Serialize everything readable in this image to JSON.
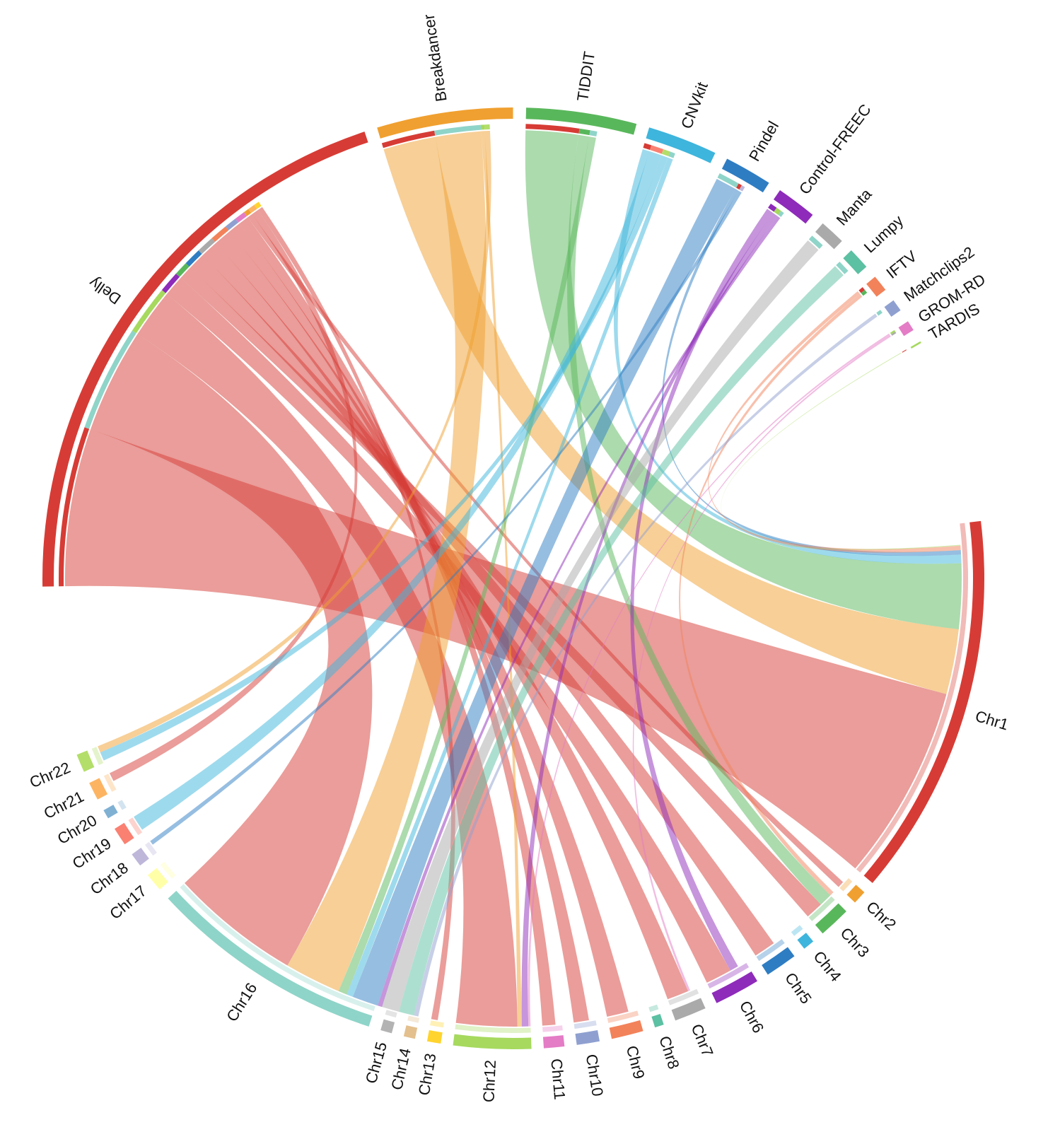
{
  "chart_data": {
    "type": "chord",
    "title": "",
    "tools": [
      {
        "name": "Delly",
        "color": "#D63C35",
        "total": 1600
      },
      {
        "name": "Breakdancer",
        "color": "#F0A030",
        "total": 370
      },
      {
        "name": "TIDDIT",
        "color": "#59B75B",
        "total": 300
      },
      {
        "name": "CNVkit",
        "color": "#3EB5DC",
        "total": 190
      },
      {
        "name": "Pindel",
        "color": "#2E7DC3",
        "total": 130
      },
      {
        "name": "Control-FREEC",
        "color": "#8E2BBA",
        "total": 110
      },
      {
        "name": "Manta",
        "color": "#AAAAAA",
        "total": 70
      },
      {
        "name": "Lumpy",
        "color": "#5CC0A2",
        "total": 60
      },
      {
        "name": "IFTV",
        "color": "#F2825A",
        "total": 45
      },
      {
        "name": "Matchclips2",
        "color": "#8FA0D0",
        "total": 33
      },
      {
        "name": "GROM-RD",
        "color": "#E47CC6",
        "total": 28
      },
      {
        "name": "TARDIS",
        "color": "#A6D95E",
        "total": 5
      }
    ],
    "chromosomes": [
      {
        "name": "Chr1",
        "color": "#D63C35",
        "total": 840
      },
      {
        "name": "Chr2",
        "color": "#F0A030",
        "total": 30
      },
      {
        "name": "Chr3",
        "color": "#59B75B",
        "total": 70
      },
      {
        "name": "Chr4",
        "color": "#3EB5DC",
        "total": 25
      },
      {
        "name": "Chr5",
        "color": "#2E7DC3",
        "total": 70
      },
      {
        "name": "Chr6",
        "color": "#8E2BBA",
        "total": 100
      },
      {
        "name": "Chr7",
        "color": "#AAAAAA",
        "total": 70
      },
      {
        "name": "Chr8",
        "color": "#5CC0A2",
        "total": 20
      },
      {
        "name": "Chr9",
        "color": "#F2825A",
        "total": 70
      },
      {
        "name": "Chr10",
        "color": "#8FA0D0",
        "total": 50
      },
      {
        "name": "Chr11",
        "color": "#E47CC6",
        "total": 45
      },
      {
        "name": "Chr12",
        "color": "#A6D95E",
        "total": 170
      },
      {
        "name": "Chr13",
        "color": "#FFD42E",
        "total": 30
      },
      {
        "name": "Chr14",
        "color": "#E3C08E",
        "total": 25
      },
      {
        "name": "Chr15",
        "color": "#B3B3B3",
        "total": 25
      },
      {
        "name": "Chr16",
        "color": "#8FD4C8",
        "total": 520
      },
      {
        "name": "Chr17",
        "color": "#FFFFA8",
        "total": 40
      },
      {
        "name": "Chr18",
        "color": "#BEB7DA",
        "total": 30
      },
      {
        "name": "Chr19",
        "color": "#FA8072",
        "total": 40
      },
      {
        "name": "Chr20",
        "color": "#80B1D3",
        "total": 20
      },
      {
        "name": "Chr21",
        "color": "#FDB462",
        "total": 40
      },
      {
        "name": "Chr22",
        "color": "#B3DE69",
        "total": 40
      }
    ],
    "links": [
      {
        "tool": "Delly",
        "chromosome": "Chr1",
        "value": 450
      },
      {
        "tool": "Delly",
        "chromosome": "Chr16",
        "value": 300
      },
      {
        "tool": "Delly",
        "chromosome": "Chr12",
        "value": 140
      },
      {
        "tool": "Delly",
        "chromosome": "Chr6",
        "value": 60
      },
      {
        "tool": "Delly",
        "chromosome": "Chr3",
        "value": 40
      },
      {
        "tool": "Delly",
        "chromosome": "Chr5",
        "value": 50
      },
      {
        "tool": "Delly",
        "chromosome": "Chr7",
        "value": 50
      },
      {
        "tool": "Delly",
        "chromosome": "Chr9",
        "value": 50
      },
      {
        "tool": "Delly",
        "chromosome": "Chr10",
        "value": 35
      },
      {
        "tool": "Delly",
        "chromosome": "Chr11",
        "value": 30
      },
      {
        "tool": "Delly",
        "chromosome": "Chr2",
        "value": 15
      },
      {
        "tool": "Delly",
        "chromosome": "Chr21",
        "value": 20
      },
      {
        "tool": "Delly",
        "chromosome": "Chr13",
        "value": 15
      },
      {
        "tool": "Breakdancer",
        "chromosome": "Chr1",
        "value": 150
      },
      {
        "tool": "Breakdancer",
        "chromosome": "Chr16",
        "value": 130
      },
      {
        "tool": "Breakdancer",
        "chromosome": "Chr12",
        "value": 10
      },
      {
        "tool": "Breakdancer",
        "chromosome": "Chr22",
        "value": 15
      },
      {
        "tool": "TIDDIT",
        "chromosome": "Chr1",
        "value": 150
      },
      {
        "tool": "TIDDIT",
        "chromosome": "Chr3",
        "value": 30
      },
      {
        "tool": "TIDDIT",
        "chromosome": "Chr16",
        "value": 20
      },
      {
        "tool": "CNVkit",
        "chromosome": "Chr1",
        "value": 20
      },
      {
        "tool": "CNVkit",
        "chromosome": "Chr19",
        "value": 35
      },
      {
        "tool": "CNVkit",
        "chromosome": "Chr22",
        "value": 20
      },
      {
        "tool": "CNVkit",
        "chromosome": "Chr16",
        "value": 15
      },
      {
        "tool": "Pindel",
        "chromosome": "Chr16",
        "value": 60
      },
      {
        "tool": "Pindel",
        "chromosome": "Chr1",
        "value": 10
      },
      {
        "tool": "Pindel",
        "chromosome": "Chr18",
        "value": 10
      },
      {
        "tool": "Control-FREEC",
        "chromosome": "Chr6",
        "value": 20
      },
      {
        "tool": "Control-FREEC",
        "chromosome": "Chr12",
        "value": 15
      },
      {
        "tool": "Control-FREEC",
        "chromosome": "Chr16",
        "value": 10
      },
      {
        "tool": "Manta",
        "chromosome": "Chr16",
        "value": 40
      },
      {
        "tool": "Lumpy",
        "chromosome": "Chr16",
        "value": 35
      },
      {
        "tool": "IFTV",
        "chromosome": "Chr1",
        "value": 10
      },
      {
        "tool": "IFTV",
        "chromosome": "Chr3",
        "value": 10
      },
      {
        "tool": "Matchclips2",
        "chromosome": "Chr16",
        "value": 10
      },
      {
        "tool": "GROM-RD",
        "chromosome": "Chr12",
        "value": 5
      },
      {
        "tool": "GROM-RD",
        "chromosome": "Chr7",
        "value": 5
      },
      {
        "tool": "TARDIS",
        "chromosome": "Chr1",
        "value": 2
      }
    ],
    "layout": "circular chord diagram: tools on the top-left arc, chromosomes on the lower-right arc",
    "legend": "none",
    "grid": false
  }
}
